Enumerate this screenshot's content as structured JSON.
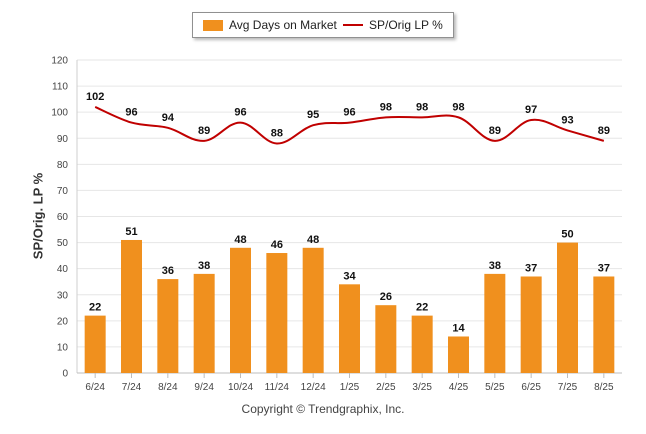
{
  "legend": {
    "bar_label": "Avg Days on Market",
    "line_label": "SP/Orig LP %"
  },
  "ylabel": "SP/Orig. LP %",
  "copyright": "Copyright © Trendgraphix, Inc.",
  "colors": {
    "bar": "#F0901E",
    "line": "#C00000",
    "grid": "#e6e6e6"
  },
  "chart_data": {
    "type": "bar",
    "categories": [
      "6/24",
      "7/24",
      "8/24",
      "9/24",
      "10/24",
      "11/24",
      "12/24",
      "1/25",
      "2/25",
      "3/25",
      "4/25",
      "5/25",
      "6/25",
      "7/25",
      "8/25"
    ],
    "series": [
      {
        "name": "Avg Days on Market",
        "type": "bar",
        "values": [
          22,
          51,
          36,
          38,
          48,
          46,
          48,
          34,
          26,
          22,
          14,
          38,
          37,
          50,
          37
        ]
      },
      {
        "name": "SP/Orig LP %",
        "type": "line",
        "values": [
          102,
          96,
          94,
          89,
          96,
          88,
          95,
          96,
          98,
          98,
          98,
          89,
          97,
          93,
          89
        ]
      }
    ],
    "ylabel": "SP/Orig. LP %",
    "ylim": [
      0,
      120
    ],
    "yticks": [
      0,
      10,
      20,
      30,
      40,
      50,
      60,
      70,
      80,
      90,
      100,
      110,
      120
    ],
    "grid": true,
    "legend_position": "top-center"
  }
}
